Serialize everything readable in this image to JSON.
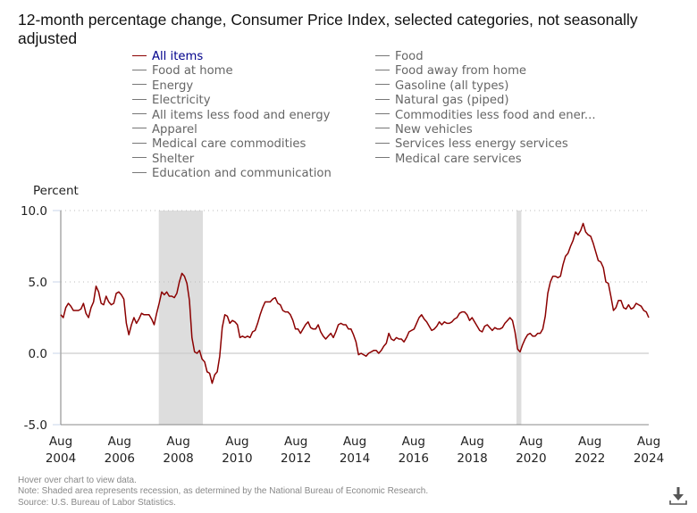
{
  "chart_data": {
    "type": "line",
    "title": "12-month percentage change, Consumer Price Index, selected categories, not seasonally adjusted",
    "ylabel": "Percent",
    "xlabel": "",
    "ylim": [
      -5,
      10
    ],
    "yticks": [
      "10.0",
      "5.0",
      "0.0",
      "-5.0"
    ],
    "ytick_values": [
      10,
      5,
      0,
      -5
    ],
    "xticks": [
      {
        "month": "Aug",
        "year": "2004"
      },
      {
        "month": "Aug",
        "year": "2006"
      },
      {
        "month": "Aug",
        "year": "2008"
      },
      {
        "month": "Aug",
        "year": "2010"
      },
      {
        "month": "Aug",
        "year": "2012"
      },
      {
        "month": "Aug",
        "year": "2014"
      },
      {
        "month": "Aug",
        "year": "2016"
      },
      {
        "month": "Aug",
        "year": "2018"
      },
      {
        "month": "Aug",
        "year": "2020"
      },
      {
        "month": "Aug",
        "year": "2022"
      },
      {
        "month": "Aug",
        "year": "2024"
      }
    ],
    "x_start": "Aug 2004",
    "x_end": "Aug 2024",
    "grid": "horizontal dotted",
    "recessions": [
      {
        "start": "Dec 2007",
        "end": "Jun 2009"
      },
      {
        "start": "Feb 2020",
        "end": "Apr 2020"
      }
    ],
    "series": [
      {
        "name": "All items",
        "color": "#8b0000",
        "frequency": "monthly",
        "values": [
          2.7,
          2.5,
          3.2,
          3.5,
          3.3,
          3.0,
          3.0,
          3.0,
          3.1,
          3.5,
          2.8,
          2.5,
          3.2,
          3.6,
          4.7,
          4.3,
          3.5,
          3.4,
          4.0,
          3.6,
          3.4,
          3.5,
          4.2,
          4.3,
          4.1,
          3.8,
          2.1,
          1.3,
          2.0,
          2.5,
          2.1,
          2.4,
          2.8,
          2.7,
          2.7,
          2.7,
          2.4,
          2.0,
          2.8,
          3.5,
          4.3,
          4.1,
          4.3,
          4.0,
          4.0,
          3.9,
          4.2,
          5.0,
          5.6,
          5.4,
          4.9,
          3.7,
          1.1,
          0.1,
          0.0,
          0.2,
          -0.4,
          -0.6,
          -1.3,
          -1.4,
          -2.1,
          -1.5,
          -1.3,
          -0.2,
          1.8,
          2.7,
          2.6,
          2.1,
          2.3,
          2.2,
          2.0,
          1.1,
          1.2,
          1.1,
          1.2,
          1.1,
          1.5,
          1.6,
          2.1,
          2.7,
          3.2,
          3.6,
          3.6,
          3.6,
          3.8,
          3.9,
          3.5,
          3.4,
          3.0,
          2.9,
          2.9,
          2.7,
          2.3,
          1.7,
          1.7,
          1.4,
          1.7,
          2.0,
          2.2,
          1.8,
          1.7,
          1.7,
          2.0,
          1.5,
          1.2,
          1.0,
          1.2,
          1.4,
          1.1,
          1.5,
          2.0,
          2.1,
          2.0,
          2.0,
          1.7,
          1.7,
          1.3,
          0.8,
          -0.1,
          0.0,
          -0.1,
          -0.2,
          0.0,
          0.1,
          0.2,
          0.2,
          0.0,
          0.2,
          0.5,
          0.7,
          1.4,
          1.0,
          0.9,
          1.1,
          1.0,
          1.0,
          0.8,
          1.1,
          1.5,
          1.6,
          1.7,
          2.1,
          2.5,
          2.7,
          2.4,
          2.2,
          1.9,
          1.6,
          1.7,
          1.9,
          2.2,
          2.0,
          2.2,
          2.1,
          2.1,
          2.2,
          2.4,
          2.5,
          2.8,
          2.9,
          2.9,
          2.7,
          2.3,
          2.5,
          2.2,
          1.9,
          1.6,
          1.5,
          1.9,
          2.0,
          1.8,
          1.6,
          1.8,
          1.7,
          1.7,
          1.8,
          2.1,
          2.3,
          2.5,
          2.3,
          1.5,
          0.3,
          0.1,
          0.6,
          1.0,
          1.3,
          1.4,
          1.2,
          1.2,
          1.4,
          1.4,
          1.7,
          2.6,
          4.2,
          5.0,
          5.4,
          5.4,
          5.3,
          5.4,
          6.2,
          6.8,
          7.0,
          7.5,
          7.9,
          8.5,
          8.3,
          8.6,
          9.1,
          8.5,
          8.3,
          8.2,
          7.7,
          7.1,
          6.5,
          6.4,
          6.0,
          5.0,
          4.9,
          4.0,
          3.0,
          3.2,
          3.7,
          3.7,
          3.2,
          3.1,
          3.4,
          3.1,
          3.2,
          3.5,
          3.4,
          3.3,
          3.0,
          2.9,
          2.5
        ]
      }
    ]
  },
  "legend": {
    "left": [
      {
        "label": "All items",
        "active": true
      },
      {
        "label": "Food at home",
        "active": false
      },
      {
        "label": "Energy",
        "active": false
      },
      {
        "label": "Electricity",
        "active": false
      },
      {
        "label": "All items less food and energy",
        "active": false
      },
      {
        "label": "Apparel",
        "active": false
      },
      {
        "label": "Medical care commodities",
        "active": false
      },
      {
        "label": "Shelter",
        "active": false
      },
      {
        "label": "Education and communication",
        "active": false
      }
    ],
    "right": [
      {
        "label": "Food",
        "active": false
      },
      {
        "label": "Food away from home",
        "active": false
      },
      {
        "label": "Gasoline (all types)",
        "active": false
      },
      {
        "label": "Natural gas (piped)",
        "active": false
      },
      {
        "label": "Commodities less food and ener...",
        "active": false
      },
      {
        "label": "New vehicles",
        "active": false
      },
      {
        "label": "Services less energy services",
        "active": false
      },
      {
        "label": "Medical care services",
        "active": false
      }
    ]
  },
  "notes": {
    "hover": "Hover over chart to view data.",
    "note": "Note: Shaded area represents recession, as determined by the National Bureau of Economic Research.",
    "source": "Source: U.S. Bureau of Labor Statistics."
  },
  "download": {
    "icon": "download-icon"
  },
  "colors": {
    "line": "#8b0000",
    "recession": "#dddddd",
    "active_legend_text": "#00008b",
    "axis": "#aaaaaa"
  }
}
